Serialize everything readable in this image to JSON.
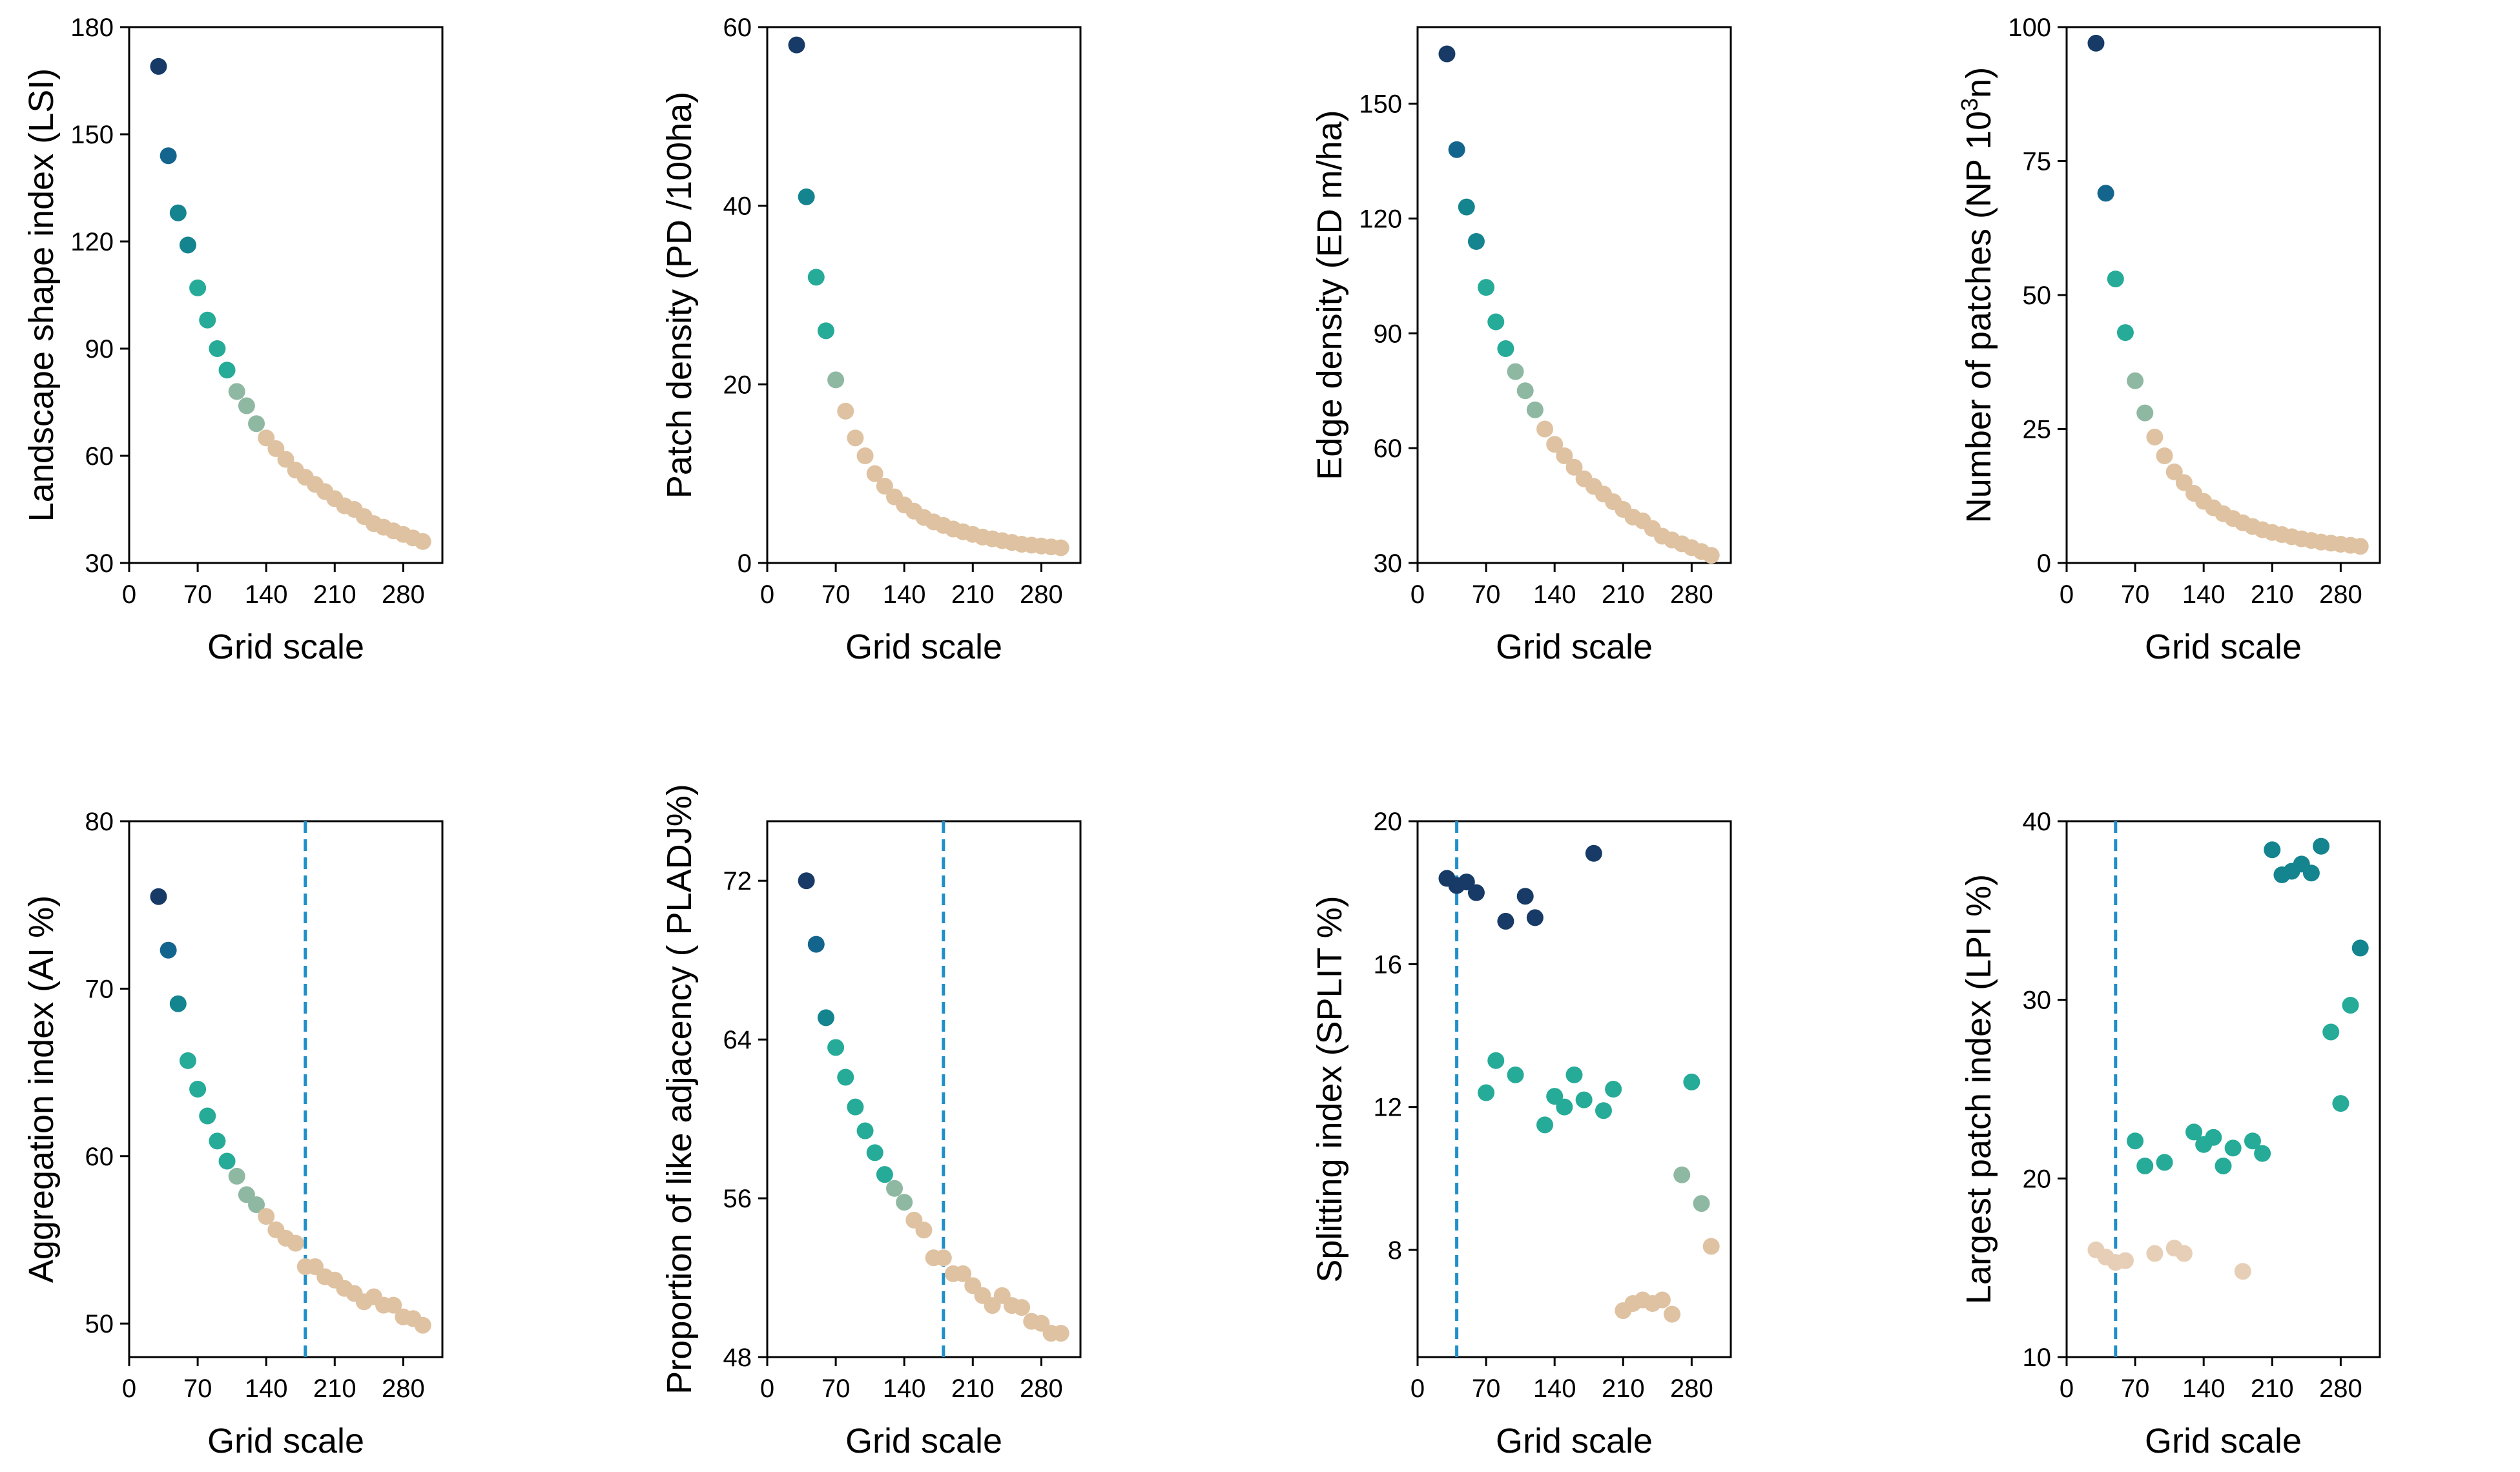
{
  "colors": {
    "dark_navy": "#173a66",
    "blue": "#14658e",
    "teal_blue": "#14848f",
    "teal": "#25ab98",
    "sage": "#8fb8a2",
    "tan": "#dfc2a1",
    "tan_light": "#e6cfb6",
    "dashed_line": "#1f8fc9"
  },
  "chart_data": [
    {
      "id": "lsi",
      "type": "scatter",
      "ylabel": "Landscape shape index (LSI)",
      "xlabel": "Grid scale",
      "xlim": [
        0,
        320
      ],
      "xticks": [
        0,
        70,
        140,
        210,
        280
      ],
      "ylim": [
        30,
        180
      ],
      "yticks": [
        30,
        60,
        90,
        120,
        150,
        180
      ],
      "x": [
        30,
        40,
        50,
        60,
        70,
        80,
        90,
        100,
        110,
        120,
        130,
        140,
        150,
        160,
        170,
        180,
        190,
        200,
        210,
        220,
        230,
        240,
        250,
        260,
        270,
        280,
        290,
        300
      ],
      "y": [
        169,
        144,
        128,
        119,
        107,
        98,
        90,
        84,
        78,
        74,
        69,
        65,
        62,
        59,
        56,
        54,
        52,
        50,
        48,
        46,
        45,
        43,
        41,
        40,
        39,
        38,
        37,
        36
      ],
      "colors": [
        "dark_navy",
        "blue",
        "teal_blue",
        "teal_blue",
        "teal",
        "teal",
        "teal",
        "teal",
        "sage",
        "sage",
        "sage",
        "tan",
        "tan",
        "tan",
        "tan",
        "tan",
        "tan",
        "tan",
        "tan",
        "tan",
        "tan",
        "tan",
        "tan",
        "tan",
        "tan",
        "tan",
        "tan",
        "tan"
      ]
    },
    {
      "id": "pd",
      "type": "scatter",
      "ylabel": "Patch density (PD /100ha)",
      "xlabel": "Grid scale",
      "xlim": [
        0,
        320
      ],
      "xticks": [
        0,
        70,
        140,
        210,
        280
      ],
      "ylim": [
        0,
        60
      ],
      "yticks": [
        0,
        20,
        40,
        60
      ],
      "x": [
        30,
        40,
        50,
        60,
        70,
        80,
        90,
        100,
        110,
        120,
        130,
        140,
        150,
        160,
        170,
        180,
        190,
        200,
        210,
        220,
        230,
        240,
        250,
        260,
        270,
        280,
        290,
        300
      ],
      "y": [
        58,
        41,
        32,
        26,
        20.5,
        17,
        14,
        12,
        10,
        8.6,
        7.4,
        6.5,
        5.8,
        5.1,
        4.6,
        4.2,
        3.8,
        3.5,
        3.2,
        2.9,
        2.7,
        2.5,
        2.3,
        2.1,
        2.0,
        1.9,
        1.8,
        1.7
      ],
      "colors": [
        "dark_navy",
        "teal_blue",
        "teal",
        "teal",
        "sage",
        "tan",
        "tan",
        "tan",
        "tan",
        "tan",
        "tan",
        "tan",
        "tan",
        "tan",
        "tan",
        "tan",
        "tan",
        "tan",
        "tan",
        "tan",
        "tan",
        "tan",
        "tan",
        "tan",
        "tan",
        "tan",
        "tan",
        "tan"
      ]
    },
    {
      "id": "ed",
      "type": "scatter",
      "ylabel": "Edge density (ED m/ha)",
      "xlabel": "Grid scale",
      "xlim": [
        0,
        320
      ],
      "xticks": [
        0,
        70,
        140,
        210,
        280
      ],
      "ylim": [
        30,
        170
      ],
      "yticks": [
        30,
        60,
        90,
        120,
        150
      ],
      "x": [
        30,
        40,
        50,
        60,
        70,
        80,
        90,
        100,
        110,
        120,
        130,
        140,
        150,
        160,
        170,
        180,
        190,
        200,
        210,
        220,
        230,
        240,
        250,
        260,
        270,
        280,
        290,
        300
      ],
      "y": [
        163,
        138,
        123,
        114,
        102,
        93,
        86,
        80,
        75,
        70,
        65,
        61,
        58,
        55,
        52,
        50,
        48,
        46,
        44,
        42,
        41,
        39,
        37,
        36,
        35,
        34,
        33,
        32
      ],
      "colors": [
        "dark_navy",
        "blue",
        "teal_blue",
        "teal_blue",
        "teal",
        "teal",
        "teal",
        "sage",
        "sage",
        "sage",
        "tan",
        "tan",
        "tan",
        "tan",
        "tan",
        "tan",
        "tan",
        "tan",
        "tan",
        "tan",
        "tan",
        "tan",
        "tan",
        "tan",
        "tan",
        "tan",
        "tan",
        "tan"
      ]
    },
    {
      "id": "np",
      "type": "scatter",
      "ylabel": "Number of patches (NP 10³n)",
      "xlabel": "Grid scale",
      "xlim": [
        0,
        320
      ],
      "xticks": [
        0,
        70,
        140,
        210,
        280
      ],
      "ylim": [
        0,
        100
      ],
      "yticks": [
        0,
        25,
        50,
        75,
        100
      ],
      "x": [
        30,
        40,
        50,
        60,
        70,
        80,
        90,
        100,
        110,
        120,
        130,
        140,
        150,
        160,
        170,
        180,
        190,
        200,
        210,
        220,
        230,
        240,
        250,
        260,
        270,
        280,
        290,
        300
      ],
      "y": [
        97,
        69,
        53,
        43,
        34,
        28,
        23.5,
        20,
        17,
        15,
        13,
        11.5,
        10.3,
        9.2,
        8.3,
        7.5,
        6.8,
        6.2,
        5.7,
        5.3,
        4.9,
        4.5,
        4.2,
        3.9,
        3.7,
        3.5,
        3.3,
        3.1
      ],
      "colors": [
        "dark_navy",
        "blue",
        "teal",
        "teal",
        "sage",
        "sage",
        "tan",
        "tan",
        "tan",
        "tan",
        "tan",
        "tan",
        "tan",
        "tan",
        "tan",
        "tan",
        "tan",
        "tan",
        "tan",
        "tan",
        "tan",
        "tan",
        "tan",
        "tan",
        "tan",
        "tan",
        "tan",
        "tan"
      ]
    },
    {
      "id": "ai",
      "type": "scatter",
      "ylabel": "Aggregation index (AI %)",
      "xlabel": "Grid scale",
      "xlim": [
        0,
        320
      ],
      "xticks": [
        0,
        70,
        140,
        210,
        280
      ],
      "ylim": [
        48,
        80
      ],
      "yticks": [
        50,
        60,
        70,
        80
      ],
      "vline": 180,
      "x": [
        30,
        40,
        50,
        60,
        70,
        80,
        90,
        100,
        110,
        120,
        130,
        140,
        150,
        160,
        170,
        180,
        190,
        200,
        210,
        220,
        230,
        240,
        250,
        260,
        270,
        280,
        290,
        300
      ],
      "y": [
        75.5,
        72.3,
        69.1,
        65.7,
        64.0,
        62.4,
        60.9,
        59.7,
        58.8,
        57.7,
        57.1,
        56.4,
        55.6,
        55.1,
        54.8,
        53.4,
        53.4,
        52.8,
        52.6,
        52.1,
        51.8,
        51.3,
        51.6,
        51.1,
        51.1,
        50.4,
        50.3,
        49.9
      ],
      "colors": [
        "dark_navy",
        "blue",
        "teal_blue",
        "teal",
        "teal",
        "teal",
        "teal",
        "teal",
        "sage",
        "sage",
        "sage",
        "tan",
        "tan",
        "tan",
        "tan",
        "tan",
        "tan",
        "tan",
        "tan",
        "tan",
        "tan",
        "tan",
        "tan",
        "tan",
        "tan",
        "tan",
        "tan",
        "tan"
      ]
    },
    {
      "id": "pladj",
      "type": "scatter",
      "ylabel": "Proportion of like adjacency ( PLADJ%)",
      "xlabel": "Grid scale",
      "xlim": [
        0,
        320
      ],
      "xticks": [
        0,
        70,
        140,
        210,
        280
      ],
      "ylim": [
        48,
        75
      ],
      "yticks": [
        48,
        56,
        64,
        72
      ],
      "vline": 180,
      "x": [
        40,
        50,
        60,
        70,
        80,
        90,
        100,
        110,
        120,
        130,
        140,
        150,
        160,
        170,
        180,
        190,
        200,
        210,
        220,
        230,
        240,
        250,
        260,
        270,
        280,
        290,
        300
      ],
      "y": [
        72.0,
        68.8,
        65.1,
        63.6,
        62.1,
        60.6,
        59.4,
        58.3,
        57.2,
        56.5,
        55.8,
        54.9,
        54.4,
        53.0,
        53.0,
        52.2,
        52.2,
        51.6,
        51.1,
        50.6,
        51.1,
        50.6,
        50.5,
        49.8,
        49.7,
        49.2,
        49.2
      ],
      "colors": [
        "dark_navy",
        "blue",
        "teal_blue",
        "teal",
        "teal",
        "teal",
        "teal",
        "teal",
        "teal",
        "sage",
        "sage",
        "tan",
        "tan",
        "tan",
        "tan",
        "tan",
        "tan",
        "tan",
        "tan",
        "tan",
        "tan",
        "tan",
        "tan",
        "tan",
        "tan",
        "tan",
        "tan"
      ]
    },
    {
      "id": "split",
      "type": "scatter",
      "ylabel": "Splitting index (SPLIT %)",
      "xlabel": "Grid scale",
      "xlim": [
        0,
        320
      ],
      "xticks": [
        0,
        70,
        140,
        210,
        280
      ],
      "ylim": [
        5,
        20
      ],
      "yticks": [
        8,
        12,
        16,
        20
      ],
      "vline": 40,
      "x": [
        30,
        40,
        50,
        60,
        70,
        80,
        90,
        100,
        110,
        120,
        130,
        140,
        150,
        160,
        170,
        180,
        190,
        200,
        210,
        220,
        230,
        240,
        250,
        260,
        270,
        280,
        290,
        300
      ],
      "y": [
        18.4,
        18.2,
        18.3,
        18.0,
        12.4,
        13.3,
        17.2,
        12.9,
        17.9,
        17.3,
        11.5,
        12.3,
        12.0,
        12.9,
        12.2,
        19.1,
        11.9,
        12.5,
        6.3,
        6.5,
        6.6,
        6.5,
        6.6,
        6.2,
        10.1,
        12.7,
        9.3,
        8.1
      ],
      "colors": [
        "dark_navy",
        "dark_navy",
        "dark_navy",
        "dark_navy",
        "teal",
        "teal",
        "dark_navy",
        "teal",
        "dark_navy",
        "dark_navy",
        "teal",
        "teal",
        "teal",
        "teal",
        "teal",
        "dark_navy",
        "teal",
        "teal",
        "tan",
        "tan",
        "tan",
        "tan",
        "tan",
        "tan",
        "sage",
        "teal",
        "sage",
        "tan"
      ]
    },
    {
      "id": "lpi",
      "type": "scatter",
      "ylabel": "Largest patch index (LPI %)",
      "xlabel": "Grid scale",
      "xlim": [
        0,
        320
      ],
      "xticks": [
        0,
        70,
        140,
        210,
        280
      ],
      "ylim": [
        10,
        40
      ],
      "yticks": [
        10,
        20,
        30,
        40
      ],
      "vline": 50,
      "x": [
        30,
        40,
        50,
        60,
        70,
        80,
        90,
        100,
        110,
        120,
        130,
        140,
        150,
        160,
        170,
        180,
        190,
        200,
        210,
        220,
        230,
        240,
        250,
        260,
        270,
        280,
        290,
        300
      ],
      "y": [
        16.0,
        15.6,
        15.3,
        15.4,
        22.1,
        20.7,
        15.8,
        20.9,
        16.1,
        15.8,
        22.6,
        21.9,
        22.3,
        20.7,
        21.7,
        14.8,
        22.1,
        21.4,
        38.4,
        37.0,
        37.2,
        37.6,
        37.1,
        38.6,
        28.2,
        24.2,
        29.7,
        32.9
      ],
      "colors": [
        "tan_light",
        "tan_light",
        "tan_light",
        "tan_light",
        "teal",
        "teal",
        "tan_light",
        "teal",
        "tan_light",
        "tan_light",
        "teal",
        "teal",
        "teal",
        "teal",
        "teal",
        "tan_light",
        "teal",
        "teal",
        "teal_blue",
        "teal_blue",
        "teal_blue",
        "teal_blue",
        "teal_blue",
        "teal_blue",
        "teal",
        "teal",
        "teal",
        "teal_blue"
      ]
    }
  ]
}
